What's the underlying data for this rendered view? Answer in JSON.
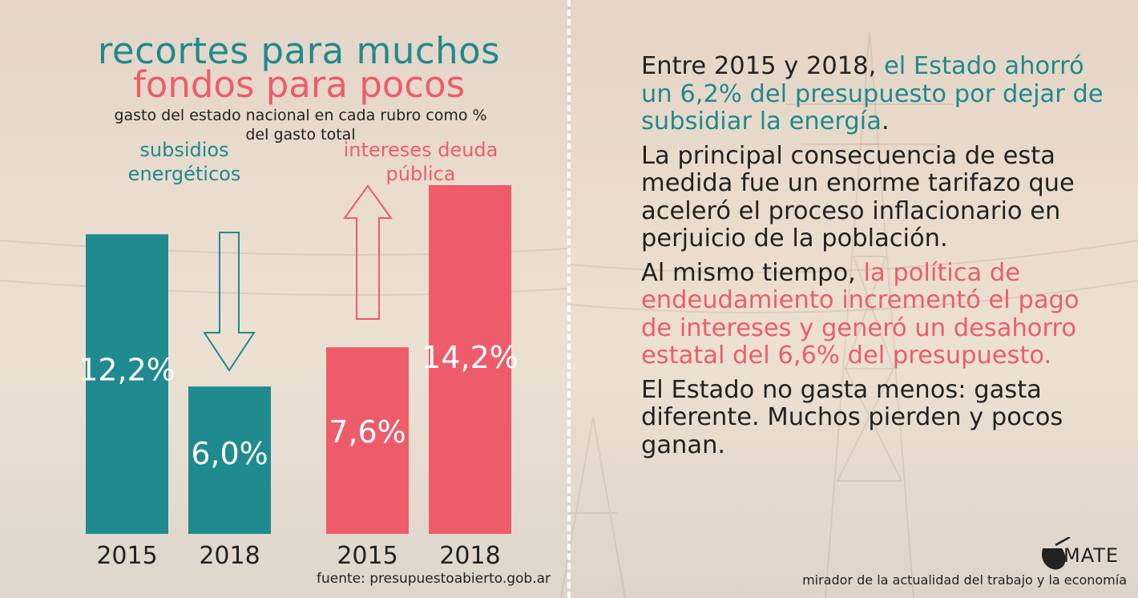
{
  "title_line1": "recortes para muchos",
  "title_line2": "fondos para pocos",
  "subtitle": "gasto del estado nacional en cada rubro como % del gasto total",
  "source": "fuente: presupuestoabierto.gob.ar",
  "colors": {
    "teal": "#1f8a8f",
    "red": "#ee5c6a",
    "text": "#222222"
  },
  "chart_data": {
    "type": "bar",
    "title": "",
    "unit": "%",
    "ylim": [
      0,
      14.2
    ],
    "groups": [
      {
        "name": "subsidios energéticos",
        "color": "#1f8a8f",
        "trend": "down",
        "categories": [
          "2015",
          "2018"
        ],
        "values": [
          12.2,
          6.0
        ],
        "labels": [
          "12,2%",
          "6,0%"
        ]
      },
      {
        "name": "intereses deuda pública",
        "color": "#ee5c6a",
        "trend": "up",
        "categories": [
          "2015",
          "2018"
        ],
        "values": [
          7.6,
          14.2
        ],
        "labels": [
          "7,6%",
          "14,2%"
        ]
      }
    ]
  },
  "right_panel": {
    "p1_a": "Entre 2015 y 2018, ",
    "p1_b": "el Estado ahorró un 6,2% del presupuesto por dejar de subsidiar la energía",
    "p1_c": ".",
    "p2": "La principal consecuencia de esta medida fue un enorme tarifazo que aceleró el proceso inflacionario en perjuicio de la población.",
    "p3_a": "Al mismo tiempo, ",
    "p3_b": "la política de endeudamiento incrementó el pago de intereses y generó un desahorro estatal del 6,6% del presupuesto.",
    "p4": "El Estado no gasta menos: gasta diferente. Muchos pierden y pocos ganan."
  },
  "brand": {
    "logo_word": "MATE",
    "logo_icon": "mate-gourd-icon",
    "tagline": "mirador de la actualidad del trabajo y la economía"
  }
}
